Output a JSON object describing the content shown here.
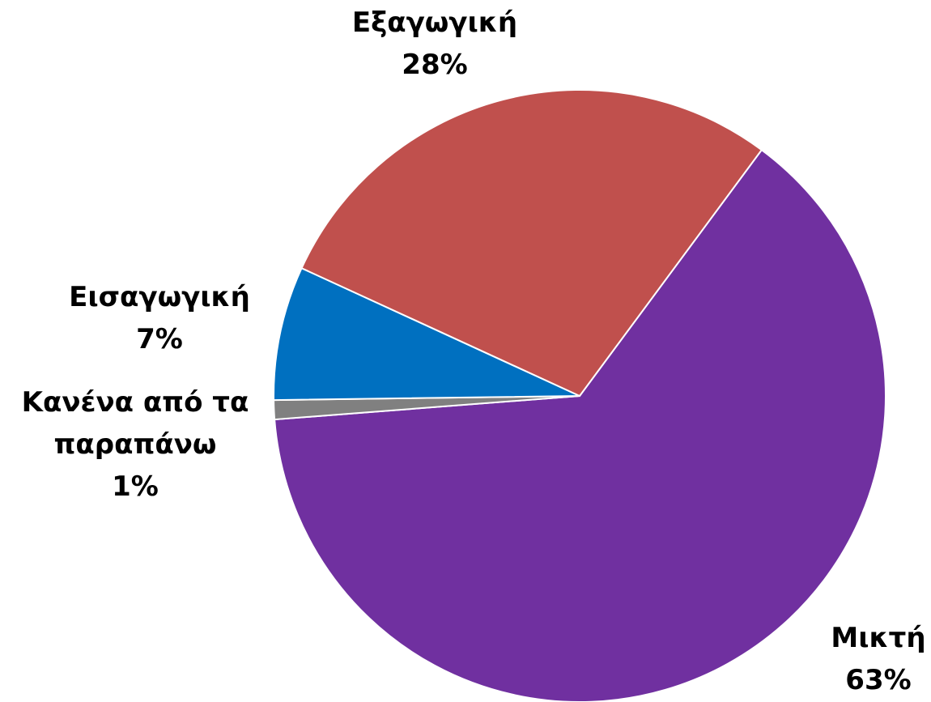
{
  "chart_data": {
    "type": "pie",
    "categories": [
      "Μικτή",
      "Κανένα από τα παραπάνω",
      "Εισαγωγική",
      "Εξαγωγική"
    ],
    "values": [
      63,
      1,
      7,
      28
    ],
    "value_labels": [
      "63%",
      "1%",
      "7%",
      "28%"
    ],
    "colors": [
      "#7030a0",
      "#808080",
      "#0070c0",
      "#c0504d"
    ]
  }
}
